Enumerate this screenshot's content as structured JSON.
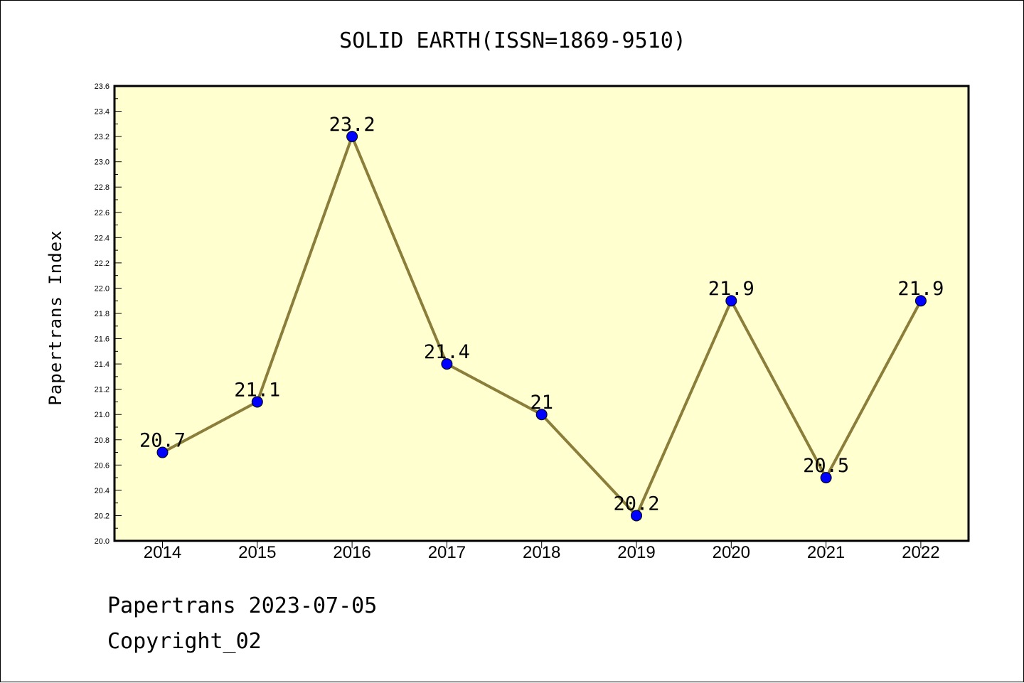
{
  "chart_data": {
    "type": "line",
    "title": "SOLID EARTH(ISSN=1869-9510)",
    "ylabel": "Papertrans Index",
    "xlabel": "",
    "x": [
      "2014",
      "2015",
      "2016",
      "2017",
      "2018",
      "2019",
      "2020",
      "2021",
      "2022"
    ],
    "series": [
      {
        "values": [
          20.7,
          21.1,
          23.2,
          21.4,
          21.0,
          20.2,
          21.9,
          20.5,
          21.9
        ],
        "labels": [
          "20.7",
          "21.1",
          "23.2",
          "21.4",
          "21",
          "20.2",
          "21.9",
          "20.5",
          "21.9"
        ]
      }
    ],
    "ylim": [
      20.0,
      23.6
    ],
    "yticks": [
      "20.0",
      "20.2",
      "20.4",
      "20.6",
      "20.8",
      "21.0",
      "21.2",
      "21.4",
      "21.6",
      "21.8",
      "22.0",
      "22.2",
      "22.4",
      "22.6",
      "22.8",
      "23.0",
      "23.2",
      "23.4",
      "23.6"
    ],
    "grid": false,
    "colors": {
      "plot_background": "#ffffd0",
      "line": "#8b7d3a",
      "marker": "#0000ff"
    }
  },
  "footer": {
    "source_text": "Papertrans 2023-07-05",
    "copyright_text": "Copyright_02"
  }
}
